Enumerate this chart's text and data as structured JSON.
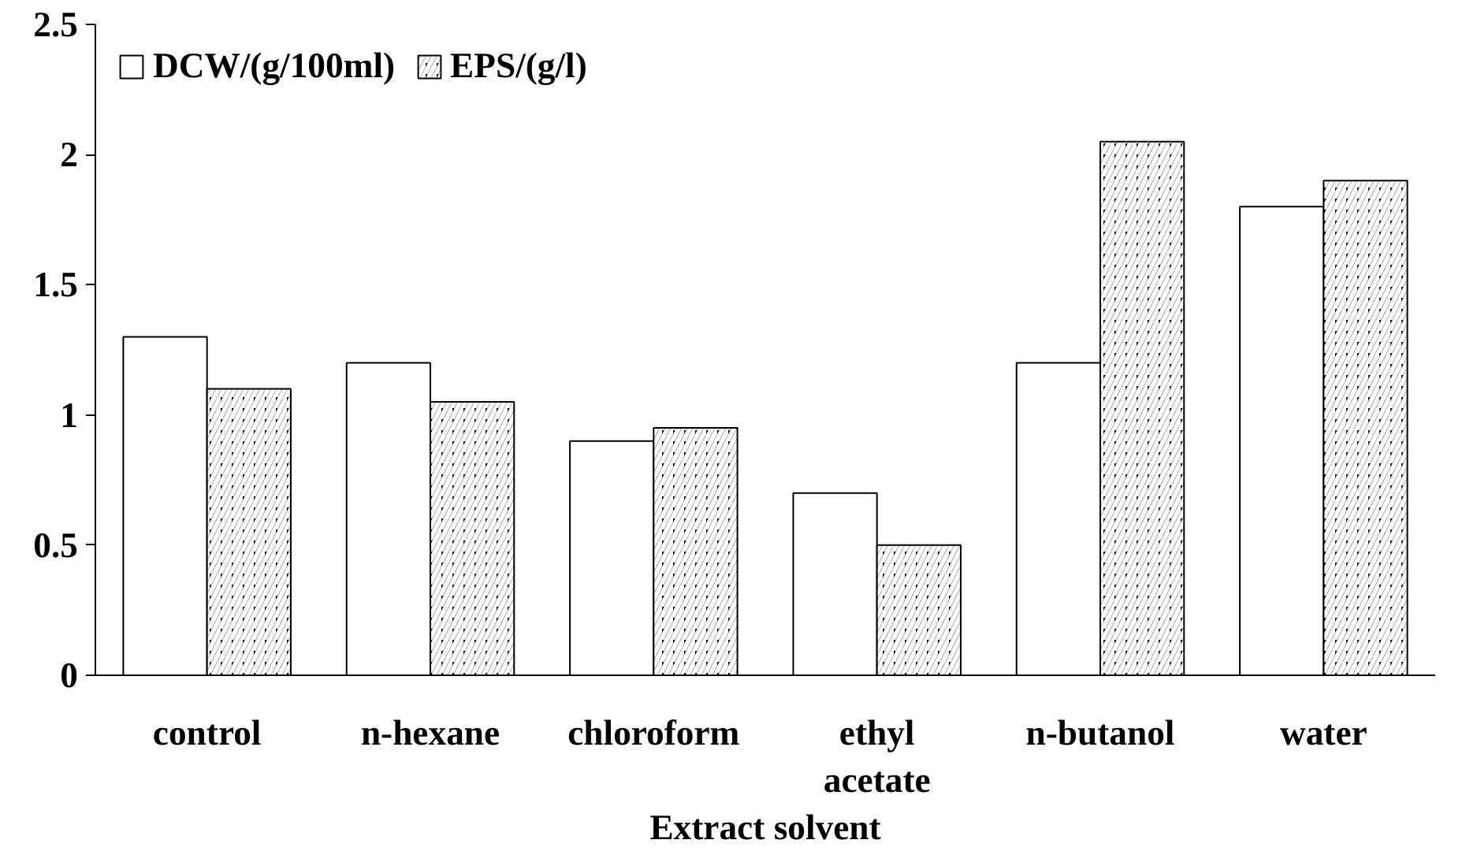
{
  "chart_data": {
    "type": "bar",
    "xlabel": "Extract solvent",
    "categories": [
      "control",
      "n-hexane",
      "chloroform",
      "ethyl acetate",
      "n-butanol",
      "water"
    ],
    "series": [
      {
        "name": "DCW/(g/100ml)",
        "color": "#ffffff",
        "values": [
          1.3,
          1.2,
          0.9,
          0.7,
          1.2,
          1.8
        ]
      },
      {
        "name": "EPS/(g/l)",
        "color": "#000000",
        "values": [
          1.1,
          1.05,
          0.95,
          0.5,
          2.05,
          1.9
        ]
      }
    ],
    "ylim": [
      0,
      2.5
    ],
    "yticks": [
      0,
      0.5,
      1,
      1.5,
      2,
      2.5
    ],
    "grid": false,
    "legend": "top left"
  }
}
